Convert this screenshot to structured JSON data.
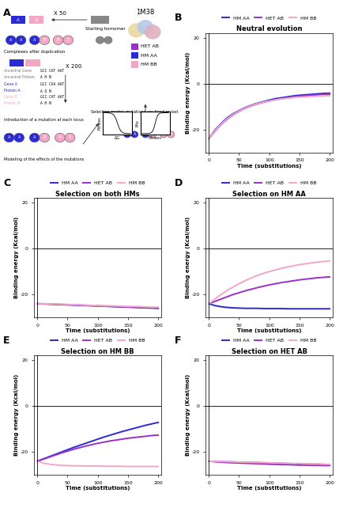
{
  "diagram": {
    "panel": "A",
    "x50": "X 50",
    "start": "Starting homomer",
    "pdb": "1M38",
    "complexes": "Complexes after duplication",
    "x200": "X 200",
    "key": [
      {
        "name": "HET AB",
        "color": "#9b30c8"
      },
      {
        "name": "HM AA",
        "color": "#2a2ad6"
      },
      {
        "name": "HM BB",
        "color": "#f4a6c6"
      }
    ],
    "gene_table": [
      [
        "Ancestral Gene",
        "GCC CAT AAT"
      ],
      [
        "Ancestral Protein",
        "A H N"
      ],
      [
        "Gene A",
        "GCC CAA AAT"
      ],
      [
        "Protein A",
        "A Q N"
      ],
      [
        "Gene B",
        "GCC CAT AAT"
      ],
      [
        "Protein B",
        "A H N"
      ]
    ],
    "gene_labels": [
      "A",
      "B"
    ],
    "complex_labels": [
      [
        "A",
        "A"
      ],
      [
        "A",
        "B"
      ],
      [
        "B",
        "B"
      ]
    ],
    "mutation": "Introduction of a mutation at each locus",
    "modeling": "Modeling of the effects of the mutations",
    "selection": "Selection model: mutations are fixed or lost",
    "fitness": "Fitness",
    "dg": "ΔG",
    "pfix": "Pfix"
  },
  "chart_data": [
    {
      "type": "line",
      "panel": "B",
      "title": "Neutral evolution",
      "x_label": "Time (substitutions)",
      "y_label": "Binding energy (Kcal/mol)",
      "xlim": [
        -5,
        205
      ],
      "xticks": [
        0,
        50,
        100,
        150,
        200
      ],
      "ylim": [
        -30,
        22
      ],
      "yticks": [
        -20,
        0,
        20
      ],
      "hline": 0,
      "vline": 0,
      "legend": "top",
      "x": [
        0,
        10,
        20,
        30,
        40,
        50,
        60,
        70,
        80,
        90,
        100,
        110,
        120,
        130,
        140,
        150,
        160,
        170,
        180,
        190,
        200
      ],
      "series": [
        {
          "name": "HM AA",
          "color": "#2a2ad6",
          "values": [
            -24,
            -20.3,
            -17.5,
            -15.0,
            -13.2,
            -11.8,
            -10.5,
            -9.5,
            -8.6,
            -7.9,
            -7.2,
            -6.6,
            -6.2,
            -5.8,
            -5.4,
            -5.1,
            -4.9,
            -4.7,
            -4.5,
            -4.3,
            -4.2
          ]
        },
        {
          "name": "HET AB",
          "color": "#9b30c8",
          "values": [
            -24,
            -20.8,
            -17.9,
            -15.6,
            -13.7,
            -12.1,
            -10.8,
            -9.8,
            -8.9,
            -8.2,
            -7.6,
            -7.0,
            -6.6,
            -6.2,
            -5.8,
            -5.5,
            -5.3,
            -5.1,
            -4.9,
            -4.7,
            -4.6
          ]
        },
        {
          "name": "HM BB",
          "color": "#f4a6c6",
          "values": [
            -24,
            -20.6,
            -17.7,
            -15.4,
            -13.5,
            -12.0,
            -10.7,
            -9.7,
            -8.8,
            -8.1,
            -7.6,
            -7.1,
            -6.7,
            -6.4,
            -6.1,
            -5.9,
            -5.8,
            -5.6,
            -5.5,
            -5.4,
            -5.3
          ]
        }
      ]
    },
    {
      "type": "line",
      "panel": "C",
      "title": "Selection on both HMs",
      "x_label": "Time (substitutions)",
      "y_label": "Binding energy (Kcal/mol)",
      "xlim": [
        -5,
        205
      ],
      "xticks": [
        0,
        50,
        100,
        150,
        200
      ],
      "ylim": [
        -30,
        22
      ],
      "yticks": [
        -20,
        0,
        20
      ],
      "hline": 0,
      "vline": 0,
      "legend": "top",
      "x": [
        0,
        10,
        20,
        30,
        40,
        50,
        60,
        70,
        80,
        90,
        100,
        110,
        120,
        130,
        140,
        150,
        160,
        170,
        180,
        190,
        200
      ],
      "series": [
        {
          "name": "HM AA",
          "color": "#2a2ad6",
          "values": [
            -24,
            -24.1,
            -24.2,
            -24.3,
            -24.4,
            -24.5,
            -24.6,
            -24.7,
            -24.8,
            -24.9,
            -25.0,
            -25.1,
            -25.2,
            -25.3,
            -25.4,
            -25.5,
            -25.6,
            -25.7,
            -25.8,
            -25.9,
            -26.0
          ]
        },
        {
          "name": "HET AB",
          "color": "#9b30c8",
          "values": [
            -24,
            -24.0,
            -24.1,
            -24.2,
            -24.3,
            -24.4,
            -24.5,
            -24.6,
            -24.7,
            -24.8,
            -24.9,
            -25.0,
            -25.1,
            -25.2,
            -25.3,
            -25.4,
            -25.5,
            -25.6,
            -25.7,
            -25.8,
            -25.9
          ]
        },
        {
          "name": "HM BB",
          "color": "#f4a6c6",
          "values": [
            -24,
            -24.0,
            -24.1,
            -24.1,
            -24.2,
            -24.3,
            -24.4,
            -24.5,
            -24.6,
            -24.7,
            -24.8,
            -24.9,
            -24.9,
            -25.0,
            -25.1,
            -25.2,
            -25.2,
            -25.3,
            -25.4,
            -25.5,
            -25.5
          ]
        }
      ]
    },
    {
      "type": "line",
      "panel": "D",
      "title": "Selection on HM AA",
      "x_label": "Time (substitutions)",
      "y_label": "Binding energy (Kcal/mol)",
      "xlim": [
        -5,
        205
      ],
      "xticks": [
        0,
        50,
        100,
        150,
        200
      ],
      "ylim": [
        -30,
        22
      ],
      "yticks": [
        -20,
        0,
        20
      ],
      "hline": 0,
      "vline": 0,
      "legend": "top",
      "x": [
        0,
        10,
        20,
        30,
        40,
        50,
        60,
        70,
        80,
        90,
        100,
        110,
        120,
        130,
        140,
        150,
        160,
        170,
        180,
        190,
        200
      ],
      "series": [
        {
          "name": "HM AA",
          "color": "#2a2ad6",
          "values": [
            -24,
            -24.8,
            -25.3,
            -25.6,
            -25.8,
            -25.9,
            -26.0,
            -26.0,
            -26.0,
            -26.1,
            -26.1,
            -26.1,
            -26.1,
            -26.2,
            -26.2,
            -26.2,
            -26.2,
            -26.2,
            -26.2,
            -26.2,
            -26.2
          ]
        },
        {
          "name": "HET AB",
          "color": "#9b30c8",
          "values": [
            -24,
            -23.0,
            -22.0,
            -21.0,
            -20.0,
            -19.2,
            -18.4,
            -17.7,
            -17.0,
            -16.4,
            -15.8,
            -15.3,
            -14.8,
            -14.4,
            -14.0,
            -13.6,
            -13.3,
            -13.0,
            -12.7,
            -12.5,
            -12.3
          ]
        },
        {
          "name": "HM BB",
          "color": "#f4a6c6",
          "values": [
            -24,
            -22.0,
            -20.0,
            -18.3,
            -16.7,
            -15.3,
            -14.0,
            -12.8,
            -11.7,
            -10.8,
            -10.0,
            -9.3,
            -8.6,
            -8.0,
            -7.5,
            -7.0,
            -6.6,
            -6.2,
            -5.9,
            -5.6,
            -5.3
          ]
        }
      ]
    },
    {
      "type": "line",
      "panel": "E",
      "title": "Selection on HM BB",
      "x_label": "Time (substitutions)",
      "y_label": "Binding energy (Kcal/mol)",
      "xlim": [
        -5,
        205
      ],
      "xticks": [
        0,
        50,
        100,
        150,
        200
      ],
      "ylim": [
        -30,
        22
      ],
      "yticks": [
        -20,
        0,
        20
      ],
      "hline": 0,
      "vline": 0,
      "legend": "top",
      "x": [
        0,
        10,
        20,
        30,
        40,
        50,
        60,
        70,
        80,
        90,
        100,
        110,
        120,
        130,
        140,
        150,
        160,
        170,
        180,
        190,
        200
      ],
      "series": [
        {
          "name": "HM AA",
          "color": "#2a2ad6",
          "values": [
            -24,
            -23.0,
            -22.0,
            -21.0,
            -20.0,
            -19.0,
            -18.0,
            -17.1,
            -16.2,
            -15.3,
            -14.4,
            -13.5,
            -12.7,
            -11.9,
            -11.1,
            -10.4,
            -9.7,
            -9.0,
            -8.3,
            -7.7,
            -7.1
          ]
        },
        {
          "name": "HET AB",
          "color": "#9b30c8",
          "values": [
            -24,
            -23.1,
            -22.2,
            -21.3,
            -20.4,
            -19.6,
            -18.8,
            -18.1,
            -17.4,
            -16.8,
            -16.2,
            -15.7,
            -15.2,
            -14.8,
            -14.4,
            -14.0,
            -13.7,
            -13.4,
            -13.1,
            -12.8,
            -12.6
          ]
        },
        {
          "name": "HM BB",
          "color": "#f4a6c6",
          "values": [
            -24,
            -24.8,
            -25.3,
            -25.6,
            -25.8,
            -25.9,
            -26.0,
            -26.0,
            -26.1,
            -26.1,
            -26.1,
            -26.2,
            -26.2,
            -26.2,
            -26.2,
            -26.3,
            -26.3,
            -26.3,
            -26.3,
            -26.3,
            -26.3
          ]
        }
      ]
    },
    {
      "type": "line",
      "panel": "F",
      "title": "Selection on HET AB",
      "x_label": "Time (substitutions)",
      "y_label": "Binding energy (Kcal/mol)",
      "xlim": [
        -5,
        205
      ],
      "xticks": [
        0,
        50,
        100,
        150,
        200
      ],
      "ylim": [
        -30,
        22
      ],
      "yticks": [
        -20,
        0,
        20
      ],
      "hline": 0,
      "vline": 0,
      "legend": "top",
      "x": [
        0,
        10,
        20,
        30,
        40,
        50,
        60,
        70,
        80,
        90,
        100,
        110,
        120,
        130,
        140,
        150,
        160,
        170,
        180,
        190,
        200
      ],
      "series": [
        {
          "name": "HM AA",
          "color": "#2a2ad6",
          "values": [
            -24,
            -24.1,
            -24.2,
            -24.3,
            -24.3,
            -24.4,
            -24.5,
            -24.6,
            -24.6,
            -24.7,
            -24.8,
            -24.9,
            -24.9,
            -25.0,
            -25.1,
            -25.1,
            -25.2,
            -25.3,
            -25.3,
            -25.4,
            -25.5
          ]
        },
        {
          "name": "HET AB",
          "color": "#9b30c8",
          "values": [
            -24,
            -24.2,
            -24.4,
            -24.6,
            -24.7,
            -24.8,
            -24.9,
            -25.0,
            -25.1,
            -25.2,
            -25.3,
            -25.4,
            -25.5,
            -25.5,
            -25.6,
            -25.7,
            -25.7,
            -25.8,
            -25.8,
            -25.9,
            -25.9
          ]
        },
        {
          "name": "HM BB",
          "color": "#f4a6c6",
          "values": [
            -24,
            -24.1,
            -24.1,
            -24.2,
            -24.3,
            -24.4,
            -24.4,
            -24.5,
            -24.6,
            -24.6,
            -24.7,
            -24.8,
            -24.8,
            -24.9,
            -25.0,
            -25.0,
            -25.1,
            -25.2,
            -25.2,
            -25.3,
            -25.4
          ]
        }
      ]
    }
  ]
}
